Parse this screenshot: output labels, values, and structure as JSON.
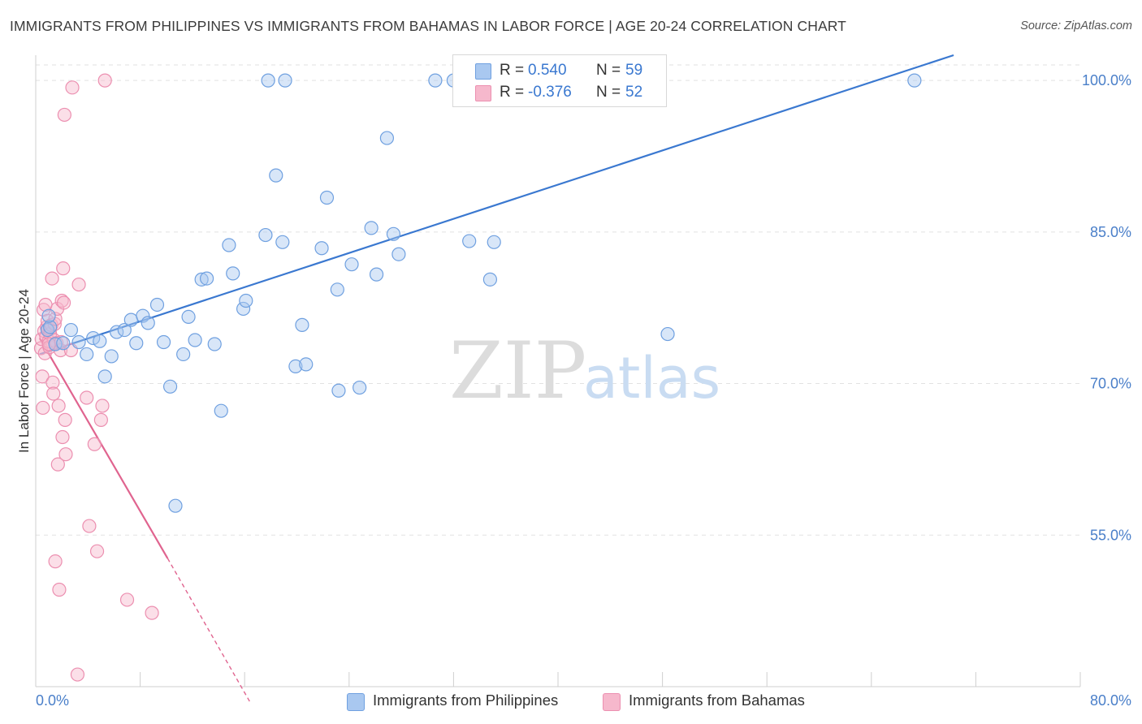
{
  "header": {
    "title": "IMMIGRANTS FROM PHILIPPINES VS IMMIGRANTS FROM BAHAMAS IN LABOR FORCE | AGE 20-24 CORRELATION CHART",
    "source": "Source: ZipAtlas.com"
  },
  "watermark": {
    "zip": "ZIP",
    "atlas": "atlas"
  },
  "legend": {
    "rows": [
      {
        "r_key": "R =",
        "r_value": "0.540",
        "n_key": "N =",
        "n_value": "59",
        "color": "#a9c8f0"
      },
      {
        "r_key": "R =",
        "r_value": "-0.376",
        "n_key": "N =",
        "n_value": "52",
        "color": "#f6b8cc"
      }
    ]
  },
  "chart_data": {
    "type": "scatter",
    "title": "IMMIGRANTS FROM PHILIPPINES VS IMMIGRANTS FROM BAHAMAS IN LABOR FORCE | AGE 20-24 CORRELATION CHART",
    "xlabel": "",
    "ylabel": "In Labor Force | Age 20-24",
    "xlim": [
      0,
      80
    ],
    "ylim": [
      40,
      102.5
    ],
    "x_tick_labels": [
      "0.0%",
      "80.0%"
    ],
    "y_ticks": [
      55,
      70,
      85,
      100
    ],
    "y_tick_labels": [
      "55.0%",
      "70.0%",
      "85.0%",
      "100.0%"
    ],
    "grid": true,
    "legend_placement": "bottom-center",
    "series": [
      {
        "name": "Immigrants from Philippines",
        "color": "#6fa0e0",
        "fill": "#a9c8f0",
        "line_color": "#3a78d0",
        "trend": {
          "x": [
            0.3,
            70.3
          ],
          "y": [
            72.9,
            102.5
          ]
        },
        "points": [
          [
            0.9,
            75.3
          ],
          [
            1.1,
            75.6
          ],
          [
            1.5,
            73.9
          ],
          [
            2.1,
            74.0
          ],
          [
            2.7,
            75.3
          ],
          [
            3.3,
            74.1
          ],
          [
            3.9,
            72.9
          ],
          [
            4.4,
            74.5
          ],
          [
            4.9,
            74.2
          ],
          [
            5.3,
            70.7
          ],
          [
            5.8,
            72.7
          ],
          [
            6.2,
            75.1
          ],
          [
            6.8,
            75.3
          ],
          [
            7.3,
            76.3
          ],
          [
            7.7,
            74.0
          ],
          [
            8.2,
            76.7
          ],
          [
            8.6,
            76.0
          ],
          [
            9.3,
            77.8
          ],
          [
            9.8,
            74.1
          ],
          [
            10.3,
            69.7
          ],
          [
            10.7,
            57.9
          ],
          [
            11.3,
            72.9
          ],
          [
            11.7,
            76.6
          ],
          [
            12.2,
            74.3
          ],
          [
            12.7,
            80.3
          ],
          [
            13.1,
            80.4
          ],
          [
            13.7,
            73.9
          ],
          [
            14.2,
            67.3
          ],
          [
            14.8,
            83.7
          ],
          [
            15.1,
            80.9
          ],
          [
            15.9,
            77.4
          ],
          [
            16.1,
            78.2
          ],
          [
            17.6,
            84.7
          ],
          [
            17.8,
            100.0
          ],
          [
            18.4,
            90.6
          ],
          [
            18.9,
            84.0
          ],
          [
            19.1,
            100.0
          ],
          [
            19.9,
            71.7
          ],
          [
            20.4,
            75.8
          ],
          [
            20.7,
            71.9
          ],
          [
            21.9,
            83.4
          ],
          [
            22.3,
            88.4
          ],
          [
            23.1,
            79.3
          ],
          [
            23.2,
            69.3
          ],
          [
            24.2,
            81.8
          ],
          [
            24.8,
            69.6
          ],
          [
            25.7,
            85.4
          ],
          [
            26.1,
            80.8
          ],
          [
            26.9,
            94.3
          ],
          [
            27.4,
            84.8
          ],
          [
            27.8,
            82.8
          ],
          [
            30.6,
            100.0
          ],
          [
            32.0,
            100.0
          ],
          [
            33.2,
            84.1
          ],
          [
            34.8,
            80.3
          ],
          [
            35.1,
            84.0
          ],
          [
            48.4,
            74.9
          ],
          [
            67.3,
            100.0
          ],
          [
            1.0,
            76.7
          ]
        ]
      },
      {
        "name": "Immigrants from Bahamas",
        "color": "#ec8fb0",
        "fill": "#f6b8cc",
        "line_color": "#e0648f",
        "trend": {
          "x": [
            0.3,
            10.1
          ],
          "y": [
            74.5,
            52.7
          ]
        },
        "trend_extension": {
          "x": [
            10.1,
            16.4
          ],
          "y": [
            52.7,
            38.5
          ]
        },
        "points": [
          [
            0.4,
            73.5
          ],
          [
            0.45,
            74.4
          ],
          [
            0.5,
            70.7
          ],
          [
            0.55,
            67.6
          ],
          [
            0.6,
            77.3
          ],
          [
            0.65,
            75.2
          ],
          [
            0.7,
            73.0
          ],
          [
            0.75,
            77.8
          ],
          [
            0.8,
            74.7
          ],
          [
            0.85,
            75.6
          ],
          [
            0.9,
            76.2
          ],
          [
            0.95,
            75.4
          ],
          [
            1.0,
            74.2
          ],
          [
            1.05,
            73.6
          ],
          [
            1.1,
            75.4
          ],
          [
            1.1,
            74.9
          ],
          [
            1.2,
            75.8
          ],
          [
            1.25,
            80.4
          ],
          [
            1.3,
            70.1
          ],
          [
            1.35,
            69.0
          ],
          [
            1.4,
            74.3
          ],
          [
            1.45,
            75.9
          ],
          [
            1.5,
            76.4
          ],
          [
            1.5,
            52.4
          ],
          [
            1.6,
            74.0
          ],
          [
            1.65,
            77.4
          ],
          [
            1.7,
            62.0
          ],
          [
            1.75,
            67.8
          ],
          [
            1.8,
            49.6
          ],
          [
            1.9,
            73.3
          ],
          [
            1.95,
            74.1
          ],
          [
            2.0,
            78.2
          ],
          [
            2.05,
            64.7
          ],
          [
            2.1,
            81.4
          ],
          [
            2.15,
            78.0
          ],
          [
            2.2,
            96.6
          ],
          [
            2.25,
            66.4
          ],
          [
            2.3,
            63.0
          ],
          [
            2.7,
            73.3
          ],
          [
            2.8,
            99.3
          ],
          [
            3.2,
            41.2
          ],
          [
            3.3,
            79.8
          ],
          [
            3.9,
            68.6
          ],
          [
            4.1,
            55.9
          ],
          [
            4.5,
            64.0
          ],
          [
            4.7,
            53.4
          ],
          [
            5.0,
            66.4
          ],
          [
            5.1,
            67.8
          ],
          [
            5.3,
            100.0
          ],
          [
            7.0,
            48.6
          ],
          [
            8.9,
            47.3
          ],
          [
            1.0,
            73.9
          ]
        ]
      }
    ]
  }
}
